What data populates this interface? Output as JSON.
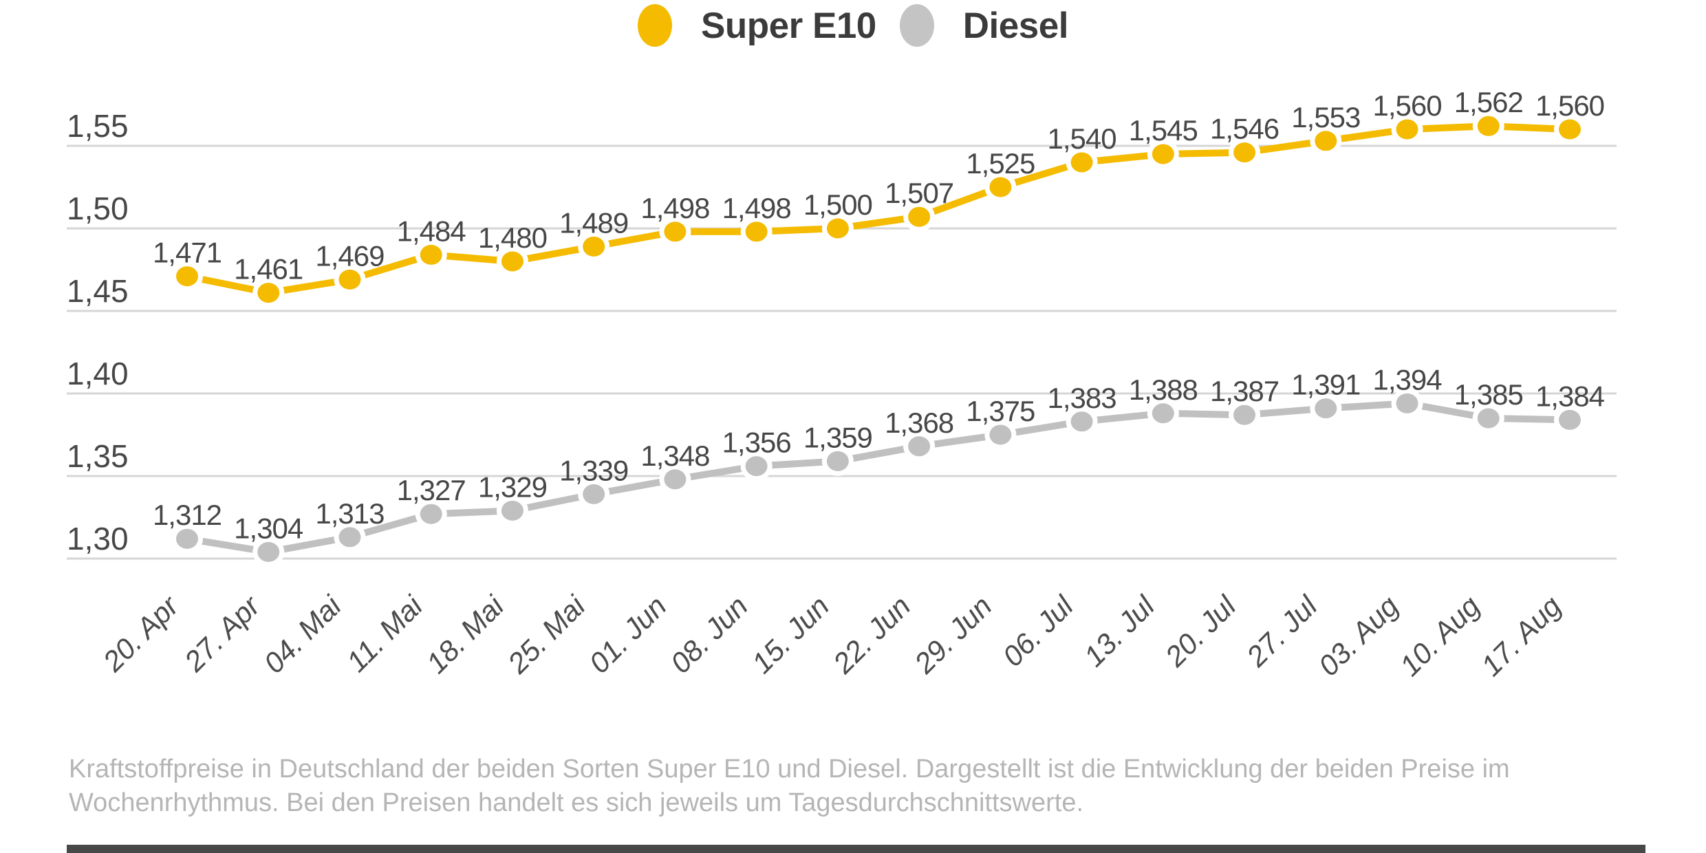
{
  "legend": {
    "items": [
      {
        "label": "Super E10",
        "color": "#f4bb00"
      },
      {
        "label": "Diesel",
        "color": "#c4c4c4"
      }
    ]
  },
  "chart_data": {
    "type": "line",
    "title": "",
    "xlabel": "",
    "ylabel": "",
    "grid": true,
    "legend_position": "top-center",
    "ylim": [
      1.275,
      1.585
    ],
    "categories": [
      "20. Apr",
      "27. Apr",
      "04. Mai",
      "11. Mai",
      "18. Mai",
      "25. Mai",
      "01. Jun",
      "08. Jun",
      "15. Jun",
      "22. Jun",
      "29. Jun",
      "06. Jul",
      "13. Jul",
      "20. Jul",
      "27. Jul",
      "03. Aug",
      "10. Aug",
      "17. Aug"
    ],
    "y_ticks": [
      {
        "value": 1.55,
        "label": "1,55"
      },
      {
        "value": 1.5,
        "label": "1,50"
      },
      {
        "value": 1.45,
        "label": "1,45"
      },
      {
        "value": 1.4,
        "label": "1,40"
      },
      {
        "value": 1.35,
        "label": "1,35"
      },
      {
        "value": 1.3,
        "label": "1,30"
      }
    ],
    "series": [
      {
        "name": "Super E10",
        "color": "#f4bb00",
        "values": [
          1.471,
          1.461,
          1.469,
          1.484,
          1.48,
          1.489,
          1.498,
          1.498,
          1.5,
          1.507,
          1.525,
          1.54,
          1.545,
          1.546,
          1.553,
          1.56,
          1.562,
          1.56
        ],
        "labels": [
          "1,471",
          "1,461",
          "1,469",
          "1,484",
          "1,480",
          "1,489",
          "1,498",
          "1,498",
          "1,500",
          "1,507",
          "1,525",
          "1,540",
          "1,545",
          "1,546",
          "1,553",
          "1,560",
          "1,562",
          "1,560"
        ]
      },
      {
        "name": "Diesel",
        "color": "#c0c0c0",
        "values": [
          1.312,
          1.304,
          1.313,
          1.327,
          1.329,
          1.339,
          1.348,
          1.356,
          1.359,
          1.368,
          1.375,
          1.383,
          1.388,
          1.387,
          1.391,
          1.394,
          1.385,
          1.384
        ],
        "labels": [
          "1,312",
          "1,304",
          "1,313",
          "1,327",
          "1,329",
          "1,339",
          "1,348",
          "1,356",
          "1,359",
          "1,368",
          "1,375",
          "1,383",
          "1,388",
          "1,387",
          "1,391",
          "1,394",
          "1,385",
          "1,384"
        ]
      }
    ]
  },
  "caption": {
    "line1": "Kraftstoffpreise in Deutschland der beiden Sorten Super E10 und Diesel. Dargestellt ist die Entwicklung der beiden Preise im",
    "line2": "Wochenrhythmus. Bei den Preisen handelt es sich jeweils um Tagesdurchschnittswerte."
  },
  "colors": {
    "grid": "#d6d6d6",
    "axis_text": "#474747",
    "data_label_text": "#474747",
    "caption_text": "#b5b5b5",
    "footer_bar": "#484848",
    "background": "#ffffff"
  }
}
